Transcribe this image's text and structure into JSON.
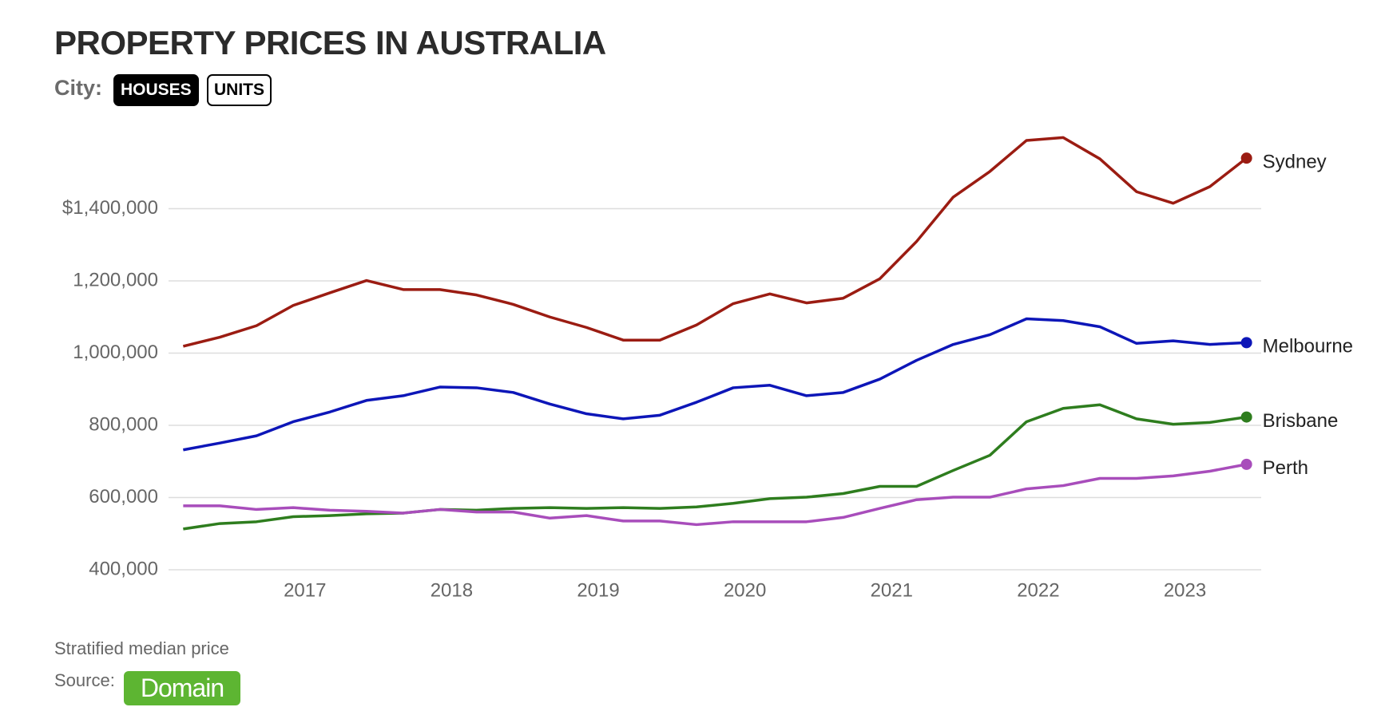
{
  "header": {
    "title": "PROPERTY PRICES IN AUSTRALIA",
    "filter_label": "City:",
    "options": [
      "HOUSES",
      "UNITS"
    ]
  },
  "chart_data": {
    "type": "line",
    "x": [
      2016.17,
      2016.42,
      2016.67,
      2016.92,
      2017.17,
      2017.42,
      2017.67,
      2017.92,
      2018.17,
      2018.42,
      2018.67,
      2018.92,
      2019.17,
      2019.42,
      2019.67,
      2019.92,
      2020.17,
      2020.42,
      2020.67,
      2020.92,
      2021.17,
      2021.42,
      2021.67,
      2021.92,
      2022.17,
      2022.42,
      2022.67,
      2022.92,
      2023.17,
      2023.42
    ],
    "series": [
      {
        "name": "Sydney",
        "color": "#9b1c12",
        "values": [
          1019000,
          1044000,
          1076000,
          1132000,
          1167000,
          1201000,
          1176000,
          1176000,
          1161000,
          1135000,
          1100000,
          1071000,
          1036000,
          1036000,
          1078000,
          1137000,
          1164000,
          1139000,
          1152000,
          1206000,
          1309000,
          1432000,
          1503000,
          1589000,
          1597000,
          1538000,
          1447000,
          1415000,
          1461000,
          1540000
        ]
      },
      {
        "name": "Melbourne",
        "color": "#0d16b8",
        "values": [
          732000,
          751000,
          771000,
          810000,
          837000,
          869000,
          882000,
          906000,
          904000,
          891000,
          859000,
          832000,
          818000,
          828000,
          864000,
          904000,
          911000,
          882000,
          891000,
          928000,
          980000,
          1024000,
          1051000,
          1095000,
          1090000,
          1073000,
          1027000,
          1034000,
          1024000,
          1029000
        ]
      },
      {
        "name": "Brisbane",
        "color": "#2e7d1e",
        "values": [
          513000,
          528000,
          533000,
          547000,
          550000,
          555000,
          557000,
          567000,
          565000,
          570000,
          572000,
          570000,
          572000,
          570000,
          574000,
          584000,
          597000,
          601000,
          611000,
          631000,
          631000,
          675000,
          717000,
          810000,
          847000,
          857000,
          818000,
          803000,
          808000,
          823000
        ]
      },
      {
        "name": "Perth",
        "color": "#a84dbb",
        "values": [
          577000,
          577000,
          567000,
          572000,
          565000,
          562000,
          557000,
          567000,
          560000,
          560000,
          543000,
          550000,
          535000,
          535000,
          525000,
          533000,
          533000,
          533000,
          545000,
          570000,
          594000,
          601000,
          601000,
          624000,
          633000,
          653000,
          653000,
          660000,
          673000,
          692000
        ]
      }
    ],
    "xlim": [
      2016.07,
      2023.52
    ],
    "xticks": [
      2017,
      2018,
      2019,
      2020,
      2021,
      2022,
      2023
    ],
    "ylim": [
      400000,
      1600000
    ],
    "yticks": [
      {
        "value": 400000,
        "label": "400,000"
      },
      {
        "value": 600000,
        "label": "600,000"
      },
      {
        "value": 800000,
        "label": "800,000"
      },
      {
        "value": 1000000,
        "label": "1,000,000"
      },
      {
        "value": 1200000,
        "label": "1,200,000"
      },
      {
        "value": 1400000,
        "label": "$1,400,000"
      }
    ],
    "grid": true
  },
  "footer": {
    "note": "Stratified median price",
    "source_label": "Source:",
    "source": "Domain"
  }
}
